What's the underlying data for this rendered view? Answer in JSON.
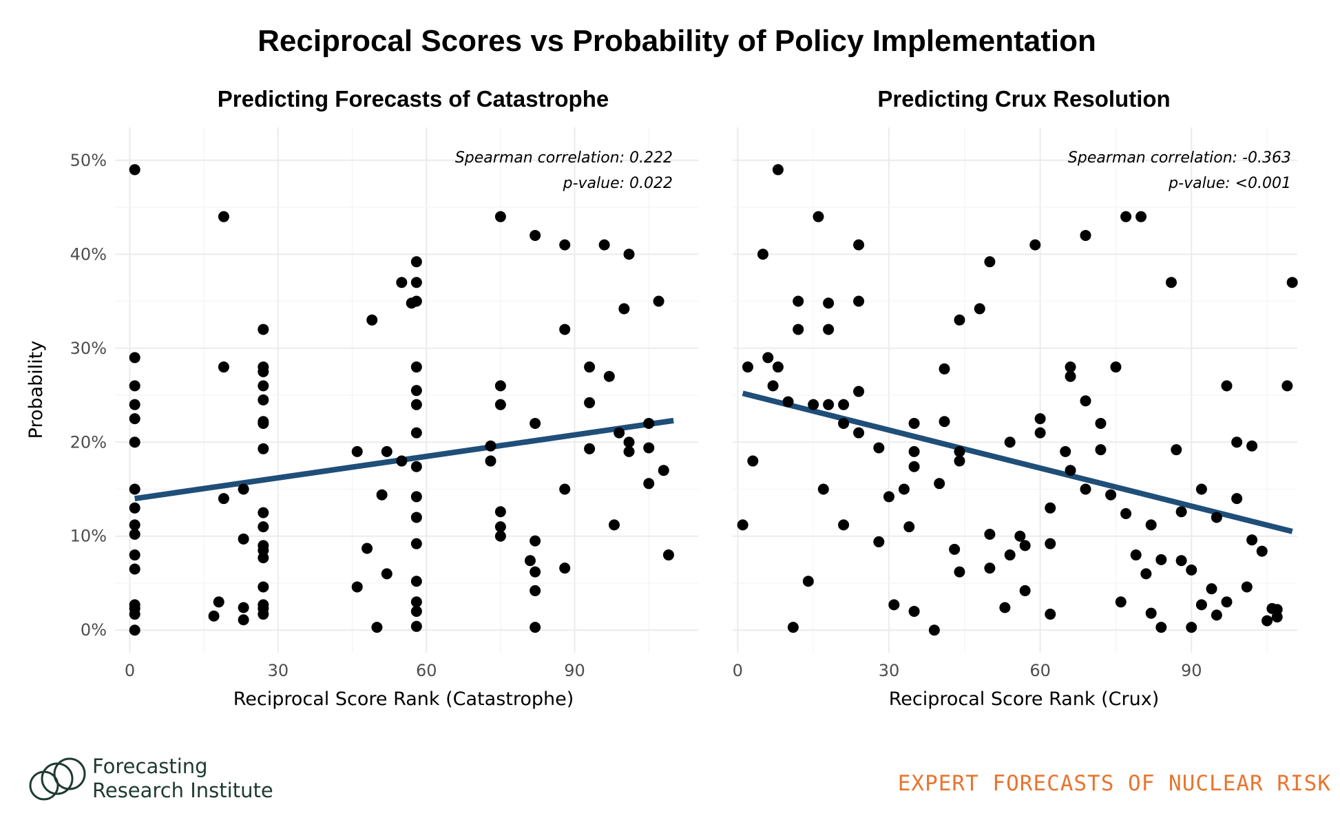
{
  "title": "Reciprocal Scores vs Probability of Policy Implementation",
  "footer": {
    "brand_line1": "Forecasting",
    "brand_line2": "Research Institute",
    "tagline": "EXPERT FORECASTS OF NUCLEAR RISK",
    "logo_icon": "overlapping-circles-logo",
    "tagline_color": "#e8752f"
  },
  "colors": {
    "points": "#000000",
    "trend": "#1f4e79"
  },
  "chart_data": [
    {
      "type": "scatter",
      "title": "Predicting Forecasts of Catastrophe",
      "xlabel": "Reciprocal Score Rank (Catastrophe)",
      "ylabel": "Probability",
      "xlim": [
        -3,
        115
      ],
      "ylim": [
        -2.4,
        53.5
      ],
      "x_ticks": [
        "0",
        "30",
        "60",
        "90"
      ],
      "y_ticks": [
        "0%",
        "10%",
        "20%",
        "30%",
        "40%",
        "50%"
      ],
      "annotation": [
        "Spearman correlation: 0.222",
        "p-value: 0.022"
      ],
      "trend": {
        "x": [
          1,
          110
        ],
        "y": [
          14.0,
          22.3
        ]
      },
      "points": [
        [
          1,
          49
        ],
        [
          1,
          29
        ],
        [
          1,
          26
        ],
        [
          1,
          24
        ],
        [
          1,
          22.5
        ],
        [
          1,
          20
        ],
        [
          1,
          15
        ],
        [
          1,
          13
        ],
        [
          1,
          11.2
        ],
        [
          1,
          10.2
        ],
        [
          1,
          8
        ],
        [
          1,
          6.5
        ],
        [
          1,
          2.7
        ],
        [
          1,
          2.3
        ],
        [
          1,
          1.7
        ],
        [
          1,
          0
        ],
        [
          17,
          1.5
        ],
        [
          18,
          3
        ],
        [
          19,
          44
        ],
        [
          19,
          28
        ],
        [
          19,
          14
        ],
        [
          23,
          15
        ],
        [
          23,
          9.7
        ],
        [
          23,
          2.4
        ],
        [
          23,
          1.1
        ],
        [
          27,
          32
        ],
        [
          27,
          28
        ],
        [
          27,
          27.5
        ],
        [
          27,
          26
        ],
        [
          27,
          24.5
        ],
        [
          27,
          22.2
        ],
        [
          27,
          22
        ],
        [
          27,
          19.3
        ],
        [
          27,
          12.5
        ],
        [
          27,
          11
        ],
        [
          27,
          9
        ],
        [
          27,
          8.5
        ],
        [
          27,
          7.7
        ],
        [
          27,
          4.6
        ],
        [
          27,
          2.7
        ],
        [
          27,
          2.3
        ],
        [
          27,
          1.7
        ],
        [
          46,
          19
        ],
        [
          46,
          4.6
        ],
        [
          48,
          8.7
        ],
        [
          49,
          33
        ],
        [
          50,
          0.3
        ],
        [
          51,
          14.4
        ],
        [
          52,
          19
        ],
        [
          52,
          6
        ],
        [
          55,
          37
        ],
        [
          55,
          18
        ],
        [
          57,
          34.8
        ],
        [
          58,
          39.2
        ],
        [
          58,
          37
        ],
        [
          58,
          35
        ],
        [
          58,
          28
        ],
        [
          58,
          25.5
        ],
        [
          58,
          24
        ],
        [
          58,
          21
        ],
        [
          58,
          17.4
        ],
        [
          58,
          14.2
        ],
        [
          58,
          12
        ],
        [
          58,
          9.2
        ],
        [
          58,
          5.2
        ],
        [
          58,
          3
        ],
        [
          58,
          2
        ],
        [
          58,
          0.4
        ],
        [
          73,
          19.6
        ],
        [
          73,
          18
        ],
        [
          75,
          44
        ],
        [
          75,
          26
        ],
        [
          75,
          24
        ],
        [
          75,
          12.6
        ],
        [
          75,
          11
        ],
        [
          75,
          10
        ],
        [
          81,
          7.4
        ],
        [
          82,
          42
        ],
        [
          82,
          22
        ],
        [
          82,
          9.5
        ],
        [
          82,
          6.2
        ],
        [
          82,
          4.2
        ],
        [
          82,
          0.3
        ],
        [
          88,
          41
        ],
        [
          88,
          32
        ],
        [
          88,
          15
        ],
        [
          88,
          6.6
        ],
        [
          93,
          28
        ],
        [
          93,
          24.2
        ],
        [
          93,
          19.3
        ],
        [
          96,
          41
        ],
        [
          97,
          27
        ],
        [
          98,
          11.2
        ],
        [
          99,
          21
        ],
        [
          100,
          34.2
        ],
        [
          101,
          40
        ],
        [
          101,
          20
        ],
        [
          101,
          19
        ],
        [
          105,
          22
        ],
        [
          105,
          19.4
        ],
        [
          105,
          15.6
        ],
        [
          107,
          35
        ],
        [
          108,
          17
        ],
        [
          109,
          8
        ]
      ]
    },
    {
      "type": "scatter",
      "title": "Predicting Crux Resolution",
      "xlabel": "Reciprocal Score Rank (Crux)",
      "ylabel": "",
      "xlim": [
        -1,
        111
      ],
      "ylim": [
        -2.4,
        53.5
      ],
      "x_ticks": [
        "0",
        "30",
        "60",
        "90"
      ],
      "y_ticks": [],
      "annotation": [
        "Spearman correlation: -0.363",
        "p-value: <0.001"
      ],
      "trend": {
        "x": [
          1,
          110
        ],
        "y": [
          25.2,
          10.5
        ]
      },
      "points": [
        [
          1,
          11.2
        ],
        [
          2,
          28
        ],
        [
          3,
          18
        ],
        [
          5,
          40
        ],
        [
          6,
          29
        ],
        [
          7,
          26
        ],
        [
          8,
          49
        ],
        [
          8,
          28
        ],
        [
          10,
          24.3
        ],
        [
          11,
          0.3
        ],
        [
          12,
          35
        ],
        [
          12,
          32
        ],
        [
          14,
          5.2
        ],
        [
          15,
          24
        ],
        [
          16,
          44
        ],
        [
          17,
          15
        ],
        [
          18,
          34.8
        ],
        [
          18,
          32
        ],
        [
          18,
          24
        ],
        [
          21,
          24
        ],
        [
          21,
          22
        ],
        [
          21,
          11.2
        ],
        [
          24,
          41
        ],
        [
          24,
          35
        ],
        [
          24,
          25.4
        ],
        [
          24,
          21
        ],
        [
          28,
          19.4
        ],
        [
          28,
          9.4
        ],
        [
          30,
          14.2
        ],
        [
          31,
          2.7
        ],
        [
          33,
          15
        ],
        [
          34,
          11
        ],
        [
          35,
          22
        ],
        [
          35,
          19
        ],
        [
          35,
          17.4
        ],
        [
          35,
          2
        ],
        [
          39,
          0
        ],
        [
          40,
          15.6
        ],
        [
          41,
          27.8
        ],
        [
          41,
          22.2
        ],
        [
          43,
          8.6
        ],
        [
          44,
          33
        ],
        [
          44,
          19
        ],
        [
          44,
          18
        ],
        [
          44,
          6.2
        ],
        [
          48,
          34.2
        ],
        [
          50,
          39.2
        ],
        [
          50,
          10.2
        ],
        [
          50,
          6.6
        ],
        [
          53,
          2.4
        ],
        [
          54,
          20
        ],
        [
          54,
          8
        ],
        [
          56,
          10
        ],
        [
          57,
          9
        ],
        [
          57,
          4.2
        ],
        [
          59,
          41
        ],
        [
          60,
          22.5
        ],
        [
          60,
          21
        ],
        [
          62,
          13
        ],
        [
          62,
          9.2
        ],
        [
          62,
          1.7
        ],
        [
          65,
          19
        ],
        [
          66,
          28
        ],
        [
          66,
          27
        ],
        [
          66,
          17
        ],
        [
          69,
          42
        ],
        [
          69,
          24.4
        ],
        [
          69,
          15
        ],
        [
          72,
          22
        ],
        [
          72,
          19.2
        ],
        [
          74,
          14.4
        ],
        [
          75,
          28
        ],
        [
          76,
          3
        ],
        [
          77,
          44
        ],
        [
          77,
          12.4
        ],
        [
          79,
          8
        ],
        [
          80,
          44
        ],
        [
          81,
          6
        ],
        [
          82,
          11.2
        ],
        [
          82,
          1.8
        ],
        [
          84,
          7.5
        ],
        [
          84,
          0.3
        ],
        [
          86,
          37
        ],
        [
          87,
          19.2
        ],
        [
          88,
          12.6
        ],
        [
          88,
          7.4
        ],
        [
          90,
          6.4
        ],
        [
          90,
          0.3
        ],
        [
          92,
          15
        ],
        [
          92,
          2.7
        ],
        [
          94,
          4.4
        ],
        [
          95,
          12
        ],
        [
          95,
          1.6
        ],
        [
          97,
          26
        ],
        [
          97,
          3
        ],
        [
          99,
          20
        ],
        [
          99,
          14
        ],
        [
          101,
          4.6
        ],
        [
          102,
          19.6
        ],
        [
          102,
          9.6
        ],
        [
          104,
          8.4
        ],
        [
          105,
          1
        ],
        [
          106,
          2.3
        ],
        [
          107,
          2.2
        ],
        [
          107,
          1.4
        ],
        [
          109,
          26
        ],
        [
          110,
          37
        ]
      ]
    }
  ]
}
